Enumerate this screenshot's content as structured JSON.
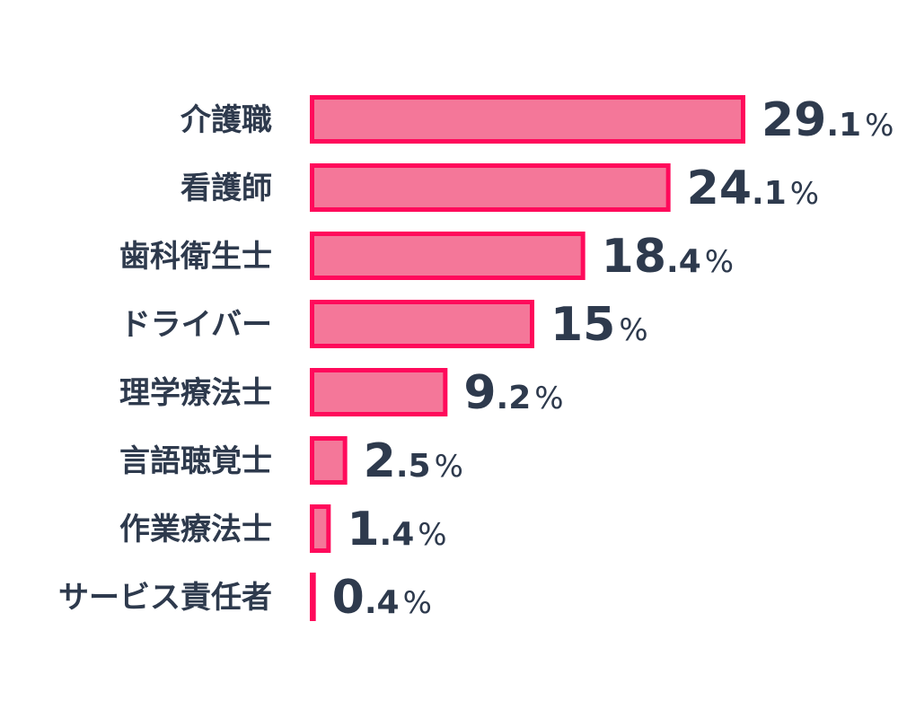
{
  "chart_data": {
    "type": "bar",
    "orientation": "horizontal",
    "categories": [
      "介護職",
      "看護師",
      "歯科衛生士",
      "ドライバー",
      "理学療法士",
      "言語聴覚士",
      "作業療法士",
      "サービス責任者"
    ],
    "values": [
      29.1,
      24.1,
      18.4,
      15,
      9.2,
      2.5,
      1.4,
      0.4
    ],
    "value_labels": [
      {
        "int": "29",
        "dec": ".1",
        "unit": "%"
      },
      {
        "int": "24",
        "dec": ".1",
        "unit": "%"
      },
      {
        "int": "18",
        "dec": ".4",
        "unit": "%"
      },
      {
        "int": "15",
        "dec": "",
        "unit": "%"
      },
      {
        "int": "9",
        "dec": ".2",
        "unit": "%"
      },
      {
        "int": "2",
        "dec": ".5",
        "unit": "%"
      },
      {
        "int": "1",
        "dec": ".4",
        "unit": "%"
      },
      {
        "int": "0",
        "dec": ".4",
        "unit": "%"
      }
    ],
    "title": "",
    "xlabel": "",
    "ylabel": "",
    "xlim": [
      0,
      29.1
    ],
    "grid": false,
    "legend": "none",
    "colors": {
      "bar_fill": "#f47799",
      "bar_border": "#ff0a5b",
      "text": "#2e3a4d"
    }
  }
}
